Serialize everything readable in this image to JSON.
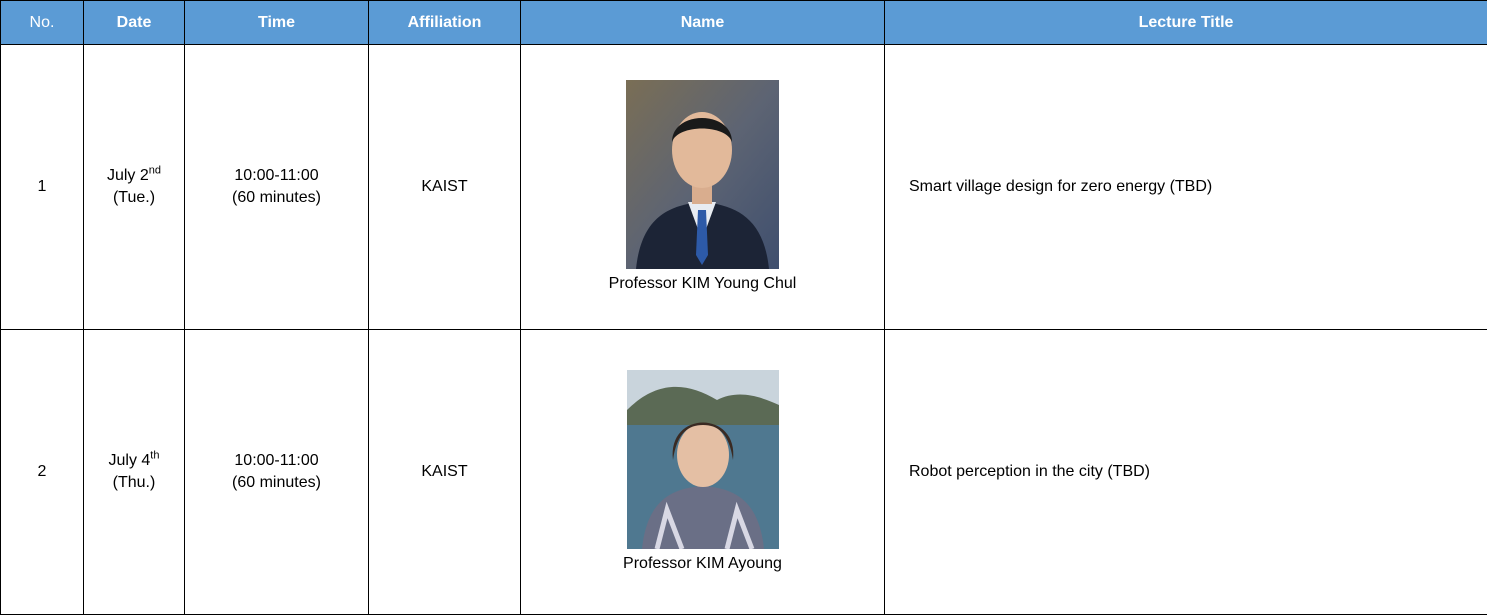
{
  "table": {
    "header": [
      "No.",
      "Date",
      "Time",
      "Affiliation",
      "Name",
      "Lecture Title"
    ],
    "rows": [
      {
        "no": "1",
        "date": "July 2",
        "date_sup": "nd",
        "weekday": "(Tue.)",
        "time": "10:00-11:00",
        "duration": "(60 minutes)",
        "affiliation": "KAIST",
        "name": "Professor KIM Young Chul",
        "title": "Smart village design for zero energy (TBD)"
      },
      {
        "no": "2",
        "date": "July 4",
        "date_sup": "th",
        "weekday": "(Thu.)",
        "time": "10:00-11:00",
        "duration": "(60 minutes)",
        "affiliation": "KAIST",
        "name": "Professor KIM Ayoung",
        "title": "Robot perception in the city (TBD)"
      }
    ]
  }
}
